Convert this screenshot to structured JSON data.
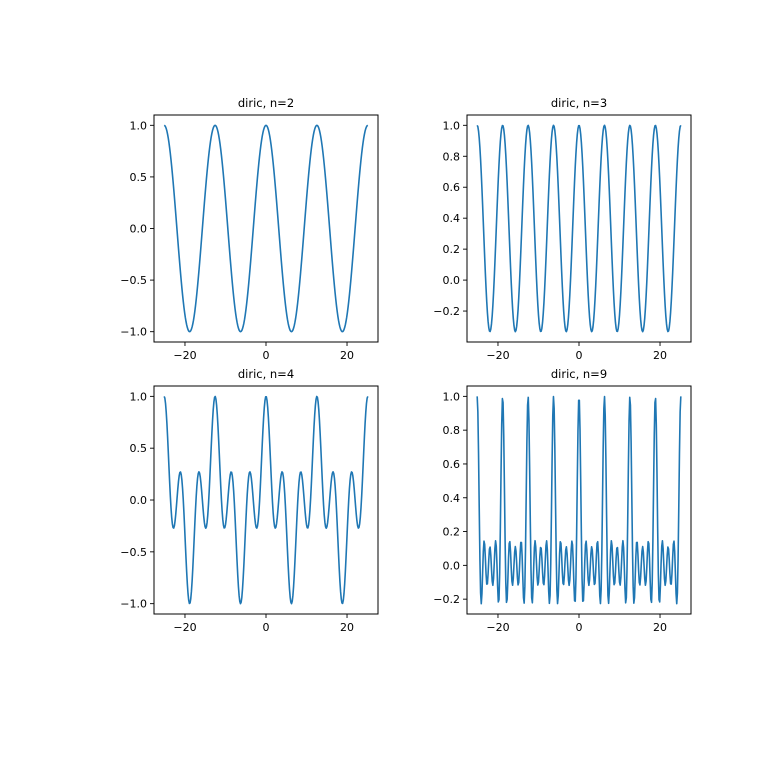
{
  "chart_data": [
    {
      "type": "line",
      "title": "diric, n=2",
      "function": "diric",
      "n": 2,
      "x_range": [
        -25.1327,
        25.1327
      ],
      "samples": 300,
      "xticks": [
        -20,
        0,
        20
      ],
      "xtick_labels": [
        "−20",
        "0",
        "20"
      ],
      "yticks": [
        -1.0,
        -0.5,
        0.0,
        0.5,
        1.0
      ],
      "ytick_labels": [
        "−1.0",
        "−0.5",
        "0.0",
        "0.5",
        "1.0"
      ],
      "color": "#1f77b4",
      "grid": false
    },
    {
      "type": "line",
      "title": "diric, n=3",
      "function": "diric",
      "n": 3,
      "x_range": [
        -25.1327,
        25.1327
      ],
      "samples": 300,
      "xticks": [
        -20,
        0,
        20
      ],
      "xtick_labels": [
        "−20",
        "0",
        "20"
      ],
      "yticks": [
        -0.2,
        0.0,
        0.2,
        0.4,
        0.6,
        0.8,
        1.0
      ],
      "ytick_labels": [
        "−0.2",
        "0.0",
        "0.2",
        "0.4",
        "0.6",
        "0.8",
        "1.0"
      ],
      "color": "#1f77b4",
      "grid": false
    },
    {
      "type": "line",
      "title": "diric, n=4",
      "function": "diric",
      "n": 4,
      "x_range": [
        -25.1327,
        25.1327
      ],
      "samples": 300,
      "xticks": [
        -20,
        0,
        20
      ],
      "xtick_labels": [
        "−20",
        "0",
        "20"
      ],
      "yticks": [
        -1.0,
        -0.5,
        0.0,
        0.5,
        1.0
      ],
      "ytick_labels": [
        "−1.0",
        "−0.5",
        "0.0",
        "0.5",
        "1.0"
      ],
      "color": "#1f77b4",
      "grid": false
    },
    {
      "type": "line",
      "title": "diric, n=9",
      "function": "diric",
      "n": 9,
      "x_range": [
        -25.1327,
        25.1327
      ],
      "samples": 300,
      "xticks": [
        -20,
        0,
        20
      ],
      "xtick_labels": [
        "−20",
        "0",
        "20"
      ],
      "yticks": [
        -0.2,
        0.0,
        0.2,
        0.4,
        0.6,
        0.8,
        1.0
      ],
      "ytick_labels": [
        "−0.2",
        "0.0",
        "0.2",
        "0.4",
        "0.6",
        "0.8",
        "1.0"
      ],
      "color": "#1f77b4",
      "grid": false
    }
  ]
}
